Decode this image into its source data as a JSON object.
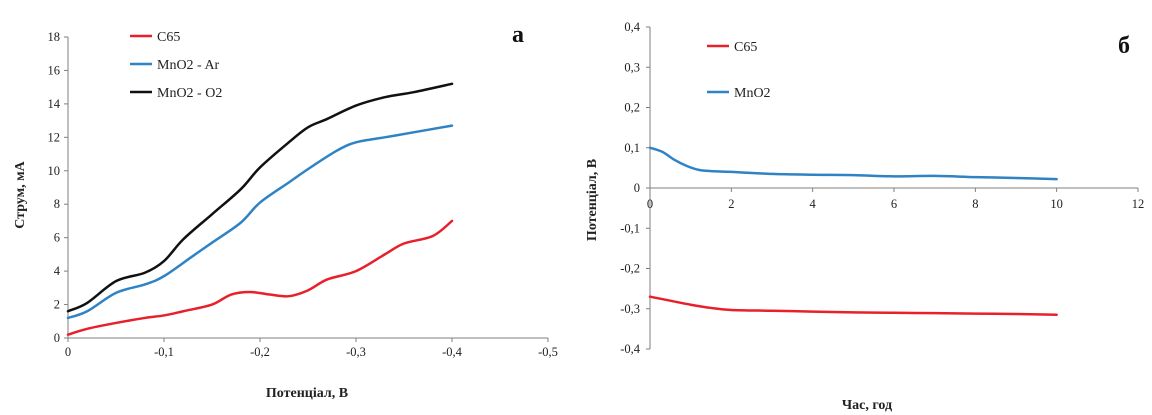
{
  "chart_data": [
    {
      "type": "line",
      "panel_label": "а",
      "xlabel": "Потенціал, В",
      "ylabel": "Струм, мА",
      "xlim": [
        0,
        -0.5
      ],
      "ylim": [
        0,
        18
      ],
      "x_ticks": [
        0,
        -0.1,
        -0.2,
        -0.3,
        -0.4,
        -0.5
      ],
      "x_tick_labels": [
        "0",
        "-0,1",
        "-0,2",
        "-0,3",
        "-0,4",
        "-0,5"
      ],
      "y_ticks": [
        0,
        2,
        4,
        6,
        8,
        10,
        12,
        14,
        16,
        18
      ],
      "y_tick_labels": [
        "0",
        "2",
        "4",
        "6",
        "8",
        "10",
        "12",
        "14",
        "16",
        "18"
      ],
      "grid": false,
      "legend_position": "top-left",
      "series": [
        {
          "name": "С65",
          "color": "#e8202a",
          "points": [
            [
              0,
              0.2
            ],
            [
              -0.02,
              0.55
            ],
            [
              -0.05,
              0.9
            ],
            [
              -0.08,
              1.2
            ],
            [
              -0.1,
              1.35
            ],
            [
              -0.12,
              1.6
            ],
            [
              -0.15,
              2.0
            ],
            [
              -0.17,
              2.6
            ],
            [
              -0.19,
              2.75
            ],
            [
              -0.21,
              2.6
            ],
            [
              -0.23,
              2.5
            ],
            [
              -0.25,
              2.85
            ],
            [
              -0.27,
              3.5
            ],
            [
              -0.3,
              4.0
            ],
            [
              -0.33,
              5.0
            ],
            [
              -0.35,
              5.65
            ],
            [
              -0.38,
              6.1
            ],
            [
              -0.4,
              7.0
            ]
          ]
        },
        {
          "name": "MnO2 - Ar",
          "color": "#2f83c5",
          "points": [
            [
              0,
              1.2
            ],
            [
              -0.02,
              1.6
            ],
            [
              -0.05,
              2.7
            ],
            [
              -0.08,
              3.2
            ],
            [
              -0.1,
              3.7
            ],
            [
              -0.13,
              4.9
            ],
            [
              -0.15,
              5.7
            ],
            [
              -0.18,
              6.9
            ],
            [
              -0.2,
              8.1
            ],
            [
              -0.23,
              9.3
            ],
            [
              -0.25,
              10.1
            ],
            [
              -0.28,
              11.2
            ],
            [
              -0.3,
              11.7
            ],
            [
              -0.33,
              12.0
            ],
            [
              -0.36,
              12.3
            ],
            [
              -0.4,
              12.7
            ]
          ]
        },
        {
          "name": "MnO2 - O2",
          "color": "#111111",
          "points": [
            [
              0,
              1.6
            ],
            [
              -0.02,
              2.1
            ],
            [
              -0.05,
              3.4
            ],
            [
              -0.08,
              3.9
            ],
            [
              -0.1,
              4.6
            ],
            [
              -0.12,
              5.9
            ],
            [
              -0.15,
              7.4
            ],
            [
              -0.18,
              8.9
            ],
            [
              -0.2,
              10.2
            ],
            [
              -0.23,
              11.7
            ],
            [
              -0.25,
              12.6
            ],
            [
              -0.27,
              13.1
            ],
            [
              -0.3,
              13.9
            ],
            [
              -0.33,
              14.4
            ],
            [
              -0.36,
              14.7
            ],
            [
              -0.4,
              15.2
            ]
          ]
        }
      ]
    },
    {
      "type": "line",
      "panel_label": "б",
      "xlabel": "Час, год",
      "ylabel": "Потенціал, В",
      "xlim": [
        0,
        12
      ],
      "ylim": [
        -0.4,
        0.4
      ],
      "x_ticks": [
        0,
        2,
        4,
        6,
        8,
        10,
        12
      ],
      "x_tick_labels": [
        "0",
        "2",
        "4",
        "6",
        "8",
        "10",
        "12"
      ],
      "y_ticks": [
        -0.4,
        -0.3,
        -0.2,
        -0.1,
        0,
        0.1,
        0.2,
        0.3,
        0.4
      ],
      "y_tick_labels": [
        "-0,4",
        "-0,3",
        "-0,2",
        "-0,1",
        "0",
        "0,1",
        "0,2",
        "0,3",
        "0,4"
      ],
      "grid": false,
      "legend_position": "top-left",
      "series": [
        {
          "name": "С65",
          "color": "#e8202a",
          "points": [
            [
              0,
              -0.27
            ],
            [
              0.5,
              -0.28
            ],
            [
              1,
              -0.29
            ],
            [
              1.5,
              -0.298
            ],
            [
              2,
              -0.303
            ],
            [
              3,
              -0.305
            ],
            [
              4,
              -0.307
            ],
            [
              5,
              -0.309
            ],
            [
              6,
              -0.31
            ],
            [
              7,
              -0.311
            ],
            [
              8,
              -0.312
            ],
            [
              9,
              -0.313
            ],
            [
              10,
              -0.315
            ]
          ]
        },
        {
          "name": "MnO2",
          "color": "#2f83c5",
          "points": [
            [
              0,
              0.1
            ],
            [
              0.3,
              0.09
            ],
            [
              0.6,
              0.07
            ],
            [
              0.9,
              0.055
            ],
            [
              1.2,
              0.045
            ],
            [
              1.5,
              0.042
            ],
            [
              2,
              0.04
            ],
            [
              3,
              0.035
            ],
            [
              4,
              0.033
            ],
            [
              5,
              0.032
            ],
            [
              6,
              0.029
            ],
            [
              7,
              0.03
            ],
            [
              8,
              0.027
            ],
            [
              9,
              0.025
            ],
            [
              10,
              0.022
            ]
          ]
        }
      ]
    }
  ]
}
